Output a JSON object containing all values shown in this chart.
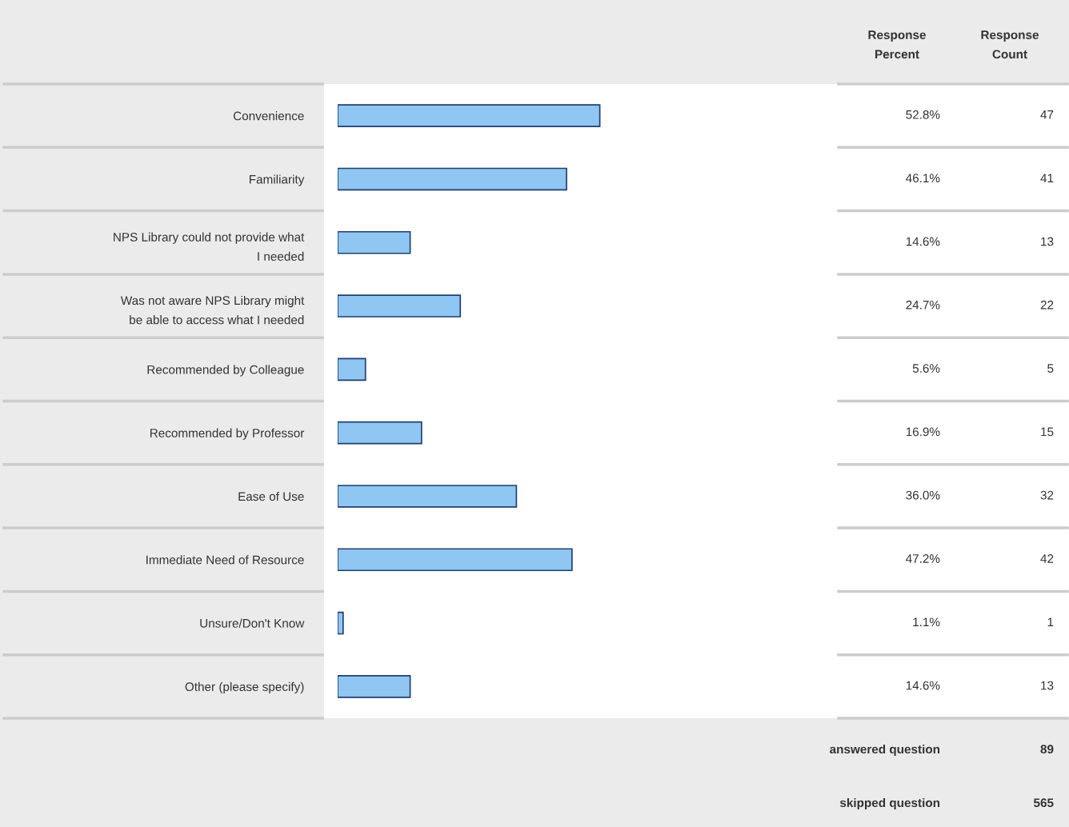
{
  "chart_data": {
    "type": "bar",
    "orientation": "horizontal",
    "categories": [
      "Convenience",
      "Familiarity",
      "NPS Library could not provide what\nI needed",
      "Was not aware NPS Library might\nbe able to access what I needed",
      "Recommended by Colleague",
      "Recommended by Professor",
      "Ease of Use",
      "Immediate Need of Resource",
      "Unsure/Don't Know",
      "Other (please specify)"
    ],
    "values": [
      52.8,
      46.1,
      14.6,
      24.7,
      5.6,
      16.9,
      36.0,
      47.2,
      1.1,
      14.6
    ],
    "value_labels": [
      "52.8%",
      "46.1%",
      "14.6%",
      "24.7%",
      "5.6%",
      "16.9%",
      "36.0%",
      "47.2%",
      "1.1%",
      "14.6%"
    ],
    "color": "#8fc6f2",
    "tick_labels": "y",
    "grid": false,
    "legend": false,
    "annotations": [
      "Response\nPercent",
      "Response\nCount",
      "answered question",
      "89",
      "skipped question",
      "565",
      "47",
      "41",
      "13",
      "22",
      "5",
      "15",
      "32",
      "42",
      "1",
      "13"
    ]
  }
}
